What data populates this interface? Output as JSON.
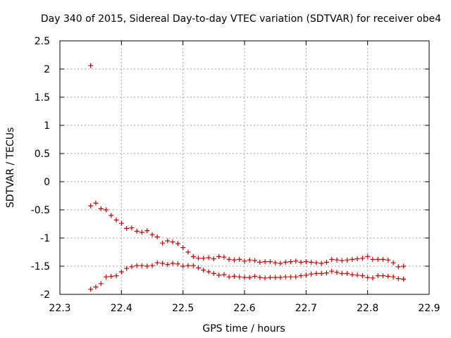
{
  "chart_data": {
    "type": "scatter",
    "title": "Day 340 of 2015, Sidereal Day-to-day VTEC variation (SDTVAR) for receiver obe4",
    "xlabel": "GPS time / hours",
    "ylabel": "SDTVAR / TECUs",
    "xlim": [
      22.3,
      22.9
    ],
    "ylim": [
      -2,
      2.5
    ],
    "xticks": [
      "22.3",
      "22.4",
      "22.5",
      "22.6",
      "22.7",
      "22.8",
      "22.9"
    ],
    "yticks": [
      "-2",
      "-1.5",
      "-1",
      "-0.5",
      "0",
      "0.5",
      "1",
      "1.5",
      "2",
      "2.5"
    ],
    "grid": true,
    "marker": "+",
    "series": [
      {
        "name": "upper",
        "color": "#cc0000",
        "x": [
          22.35,
          22.3583,
          22.3667,
          22.375,
          22.3833,
          22.3917,
          22.4,
          22.4083,
          22.4167,
          22.425,
          22.4333,
          22.4417,
          22.45,
          22.4583,
          22.4667,
          22.475,
          22.4833,
          22.4917,
          22.5,
          22.5083,
          22.5167,
          22.525,
          22.5333,
          22.5417,
          22.55,
          22.5583,
          22.5667,
          22.575,
          22.5833,
          22.5917,
          22.6,
          22.6083,
          22.6167,
          22.625,
          22.6333,
          22.6417,
          22.65,
          22.6583,
          22.6667,
          22.675,
          22.6833,
          22.6917,
          22.7,
          22.7083,
          22.7167,
          22.725,
          22.7333,
          22.7417,
          22.75,
          22.7583,
          22.7667,
          22.775,
          22.7833,
          22.7917,
          22.8,
          22.8083,
          22.8167,
          22.825,
          22.8333,
          22.8417,
          22.85,
          22.8583
        ],
        "y": [
          -0.43,
          -0.38,
          -0.48,
          -0.5,
          -0.6,
          -0.68,
          -0.74,
          -0.83,
          -0.82,
          -0.88,
          -0.9,
          -0.87,
          -0.94,
          -0.98,
          -1.09,
          -1.05,
          -1.07,
          -1.1,
          -1.17,
          -1.25,
          -1.33,
          -1.36,
          -1.36,
          -1.35,
          -1.37,
          -1.33,
          -1.34,
          -1.38,
          -1.39,
          -1.38,
          -1.41,
          -1.39,
          -1.4,
          -1.43,
          -1.42,
          -1.42,
          -1.44,
          -1.45,
          -1.43,
          -1.42,
          -1.41,
          -1.43,
          -1.42,
          -1.43,
          -1.44,
          -1.45,
          -1.43,
          -1.38,
          -1.39,
          -1.4,
          -1.39,
          -1.38,
          -1.37,
          -1.36,
          -1.33,
          -1.38,
          -1.38,
          -1.38,
          -1.39,
          -1.44,
          -1.51,
          -1.5
        ]
      },
      {
        "name": "lower",
        "color": "#cc0000",
        "x": [
          22.35,
          22.3583,
          22.3667,
          22.375,
          22.3833,
          22.3917,
          22.4,
          22.4083,
          22.4167,
          22.425,
          22.4333,
          22.4417,
          22.45,
          22.4583,
          22.4667,
          22.475,
          22.4833,
          22.4917,
          22.5,
          22.5083,
          22.5167,
          22.525,
          22.5333,
          22.5417,
          22.55,
          22.5583,
          22.5667,
          22.575,
          22.5833,
          22.5917,
          22.6,
          22.6083,
          22.6167,
          22.625,
          22.6333,
          22.6417,
          22.65,
          22.6583,
          22.6667,
          22.675,
          22.6833,
          22.6917,
          22.7,
          22.7083,
          22.7167,
          22.725,
          22.7333,
          22.7417,
          22.75,
          22.7583,
          22.7667,
          22.775,
          22.7833,
          22.7917,
          22.8,
          22.8083,
          22.8167,
          22.825,
          22.8333,
          22.8417,
          22.85,
          22.8583
        ],
        "y": [
          -1.91,
          -1.87,
          -1.81,
          -1.69,
          -1.68,
          -1.67,
          -1.6,
          -1.54,
          -1.51,
          -1.49,
          -1.49,
          -1.5,
          -1.49,
          -1.44,
          -1.45,
          -1.47,
          -1.45,
          -1.46,
          -1.5,
          -1.49,
          -1.49,
          -1.53,
          -1.57,
          -1.6,
          -1.63,
          -1.66,
          -1.65,
          -1.69,
          -1.68,
          -1.69,
          -1.7,
          -1.7,
          -1.68,
          -1.7,
          -1.71,
          -1.7,
          -1.7,
          -1.7,
          -1.69,
          -1.69,
          -1.69,
          -1.67,
          -1.66,
          -1.64,
          -1.63,
          -1.63,
          -1.62,
          -1.59,
          -1.61,
          -1.63,
          -1.63,
          -1.65,
          -1.66,
          -1.67,
          -1.7,
          -1.71,
          -1.67,
          -1.67,
          -1.68,
          -1.69,
          -1.72,
          -1.73
        ]
      },
      {
        "name": "outlier",
        "color": "#cc0000",
        "x": [
          22.35
        ],
        "y": [
          2.06
        ]
      }
    ]
  }
}
